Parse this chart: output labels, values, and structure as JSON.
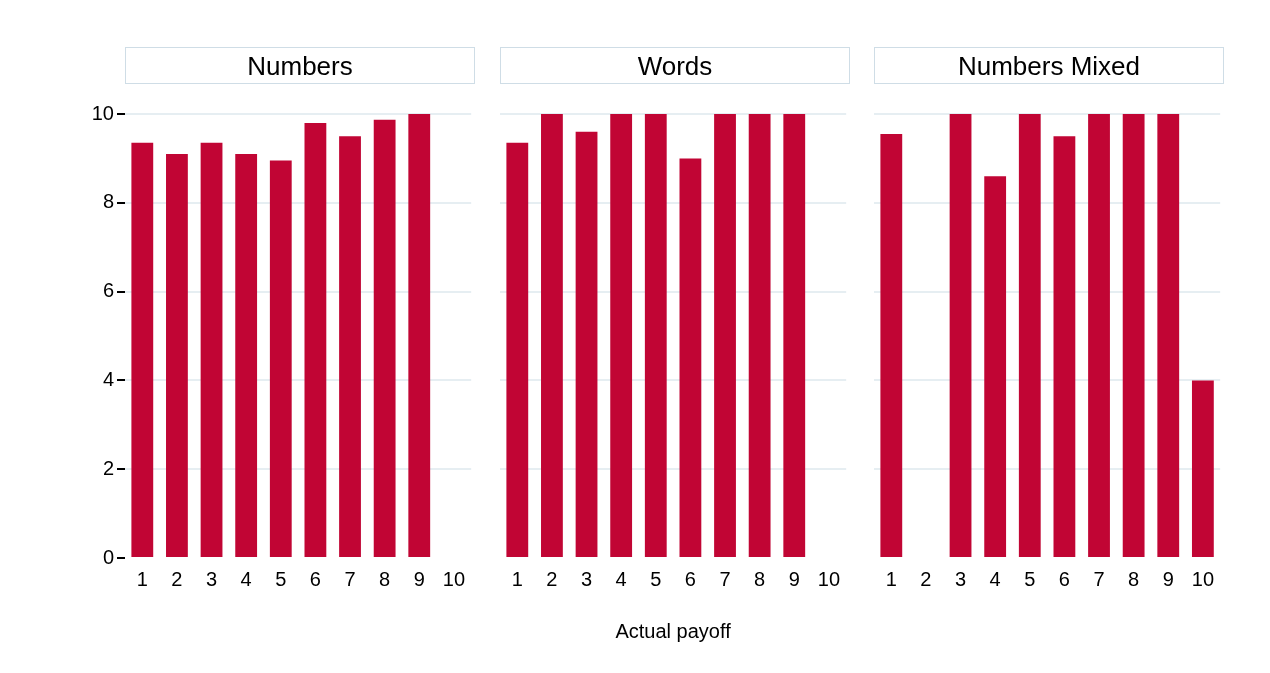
{
  "chart_data": [
    {
      "type": "bar",
      "title": "Numbers",
      "categories": [
        "1",
        "2",
        "3",
        "4",
        "5",
        "6",
        "7",
        "8",
        "9",
        "10"
      ],
      "values": [
        9.35,
        9.1,
        9.35,
        9.1,
        8.95,
        9.8,
        9.5,
        9.87,
        10,
        null
      ],
      "color": "#c10534",
      "ylim": [
        0,
        10
      ],
      "yticks": [
        0,
        2,
        4,
        6,
        8,
        10
      ],
      "grid": "y"
    },
    {
      "type": "bar",
      "title": "Words",
      "xlabel": "Actual payoff",
      "categories": [
        "1",
        "2",
        "3",
        "4",
        "5",
        "6",
        "7",
        "8",
        "9",
        "10"
      ],
      "values": [
        9.35,
        10,
        9.6,
        10,
        10,
        9.0,
        10,
        10,
        10,
        null
      ],
      "color": "#c10534",
      "ylim": [
        0,
        10
      ],
      "yticks": [
        0,
        2,
        4,
        6,
        8,
        10
      ],
      "grid": "y",
      "tick_labels": "x"
    },
    {
      "type": "bar",
      "title": "Numbers Mixed",
      "categories": [
        "1",
        "2",
        "3",
        "4",
        "5",
        "6",
        "7",
        "8",
        "9",
        "10"
      ],
      "values": [
        9.55,
        null,
        10,
        8.6,
        10,
        9.5,
        10,
        10,
        10,
        4.0
      ],
      "color": "#c10534",
      "ylim": [
        0,
        10
      ],
      "yticks": [
        0,
        2,
        4,
        6,
        8,
        10
      ],
      "grid": "y",
      "tick_labels": "x"
    }
  ]
}
